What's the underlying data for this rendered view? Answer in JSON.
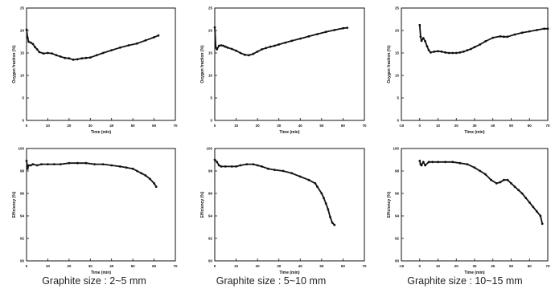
{
  "captions": [
    "Graphite size : 2~5 mm",
    "Graphite size : 5~10 mm",
    "Graphite size : 10~15 mm"
  ],
  "chart_data": [
    {
      "type": "line",
      "xlabel": "Time (min)",
      "ylabel": "Oxygen fraction (%)",
      "xlim": [
        0,
        70
      ],
      "ylim": [
        0,
        25
      ],
      "xticks": [
        0,
        10,
        20,
        30,
        40,
        50,
        60,
        70
      ],
      "yticks": [
        0,
        5,
        10,
        15,
        20,
        25
      ],
      "series": [
        {
          "x": [
            0,
            0.5,
            1,
            2,
            3,
            4,
            5,
            6,
            8,
            10,
            12,
            14,
            16,
            18,
            20,
            22,
            24,
            26,
            28,
            30,
            33,
            36,
            40,
            44,
            48,
            52,
            56,
            60,
            62
          ],
          "y": [
            20.2,
            18.4,
            17.5,
            17.3,
            17.0,
            16.3,
            15.8,
            15.2,
            14.9,
            15.0,
            14.9,
            14.5,
            14.2,
            13.9,
            13.8,
            13.5,
            13.6,
            13.8,
            13.9,
            14.0,
            14.5,
            15.0,
            15.6,
            16.2,
            16.7,
            17.1,
            17.8,
            18.5,
            18.9
          ]
        }
      ]
    },
    {
      "type": "line",
      "xlabel": "Time (min)",
      "ylabel": "Oxygen fraction (%)",
      "xlim": [
        0,
        70
      ],
      "ylim": [
        0,
        25
      ],
      "xticks": [
        0,
        10,
        20,
        30,
        40,
        50,
        60,
        70
      ],
      "yticks": [
        0,
        5,
        10,
        15,
        20,
        25
      ],
      "series": [
        {
          "x": [
            0,
            0.5,
            1,
            2,
            3,
            4,
            5,
            6,
            8,
            10,
            12,
            14,
            16,
            18,
            20,
            22,
            24,
            26,
            28,
            30,
            33,
            36,
            40,
            44,
            48,
            52,
            56,
            60,
            62
          ],
          "y": [
            20.7,
            16.2,
            15.8,
            16.6,
            16.7,
            16.6,
            16.4,
            16.2,
            15.9,
            15.5,
            15.0,
            14.6,
            14.5,
            14.8,
            15.3,
            15.8,
            16.1,
            16.4,
            16.6,
            16.9,
            17.3,
            17.7,
            18.2,
            18.7,
            19.2,
            19.7,
            20.1,
            20.5,
            20.6
          ]
        }
      ]
    },
    {
      "type": "line",
      "xlabel": "Time (min)",
      "ylabel": "Oxygen fraction (%)",
      "xlim": [
        -10,
        70
      ],
      "ylim": [
        0,
        25
      ],
      "xticks": [
        -10,
        0,
        10,
        20,
        30,
        40,
        50,
        60,
        70
      ],
      "yticks": [
        0,
        5,
        10,
        15,
        20,
        25
      ],
      "series": [
        {
          "x": [
            0,
            0.5,
            1,
            2,
            3,
            4,
            5,
            6,
            8,
            10,
            12,
            14,
            16,
            18,
            20,
            22,
            24,
            26,
            28,
            30,
            33,
            36,
            40,
            44,
            46,
            48,
            52,
            56,
            60,
            64,
            68,
            70
          ],
          "y": [
            21.2,
            18.6,
            17.7,
            18.3,
            17.6,
            16.5,
            15.6,
            15.1,
            15.3,
            15.4,
            15.3,
            15.1,
            15.0,
            15.0,
            15.0,
            15.1,
            15.3,
            15.6,
            15.9,
            16.3,
            16.9,
            17.6,
            18.4,
            18.7,
            18.6,
            18.6,
            19.1,
            19.5,
            19.8,
            20.1,
            20.4,
            20.4
          ]
        }
      ]
    },
    {
      "type": "line",
      "xlabel": "Time (min)",
      "ylabel": "Efficiency (%)",
      "xlim": [
        0,
        70
      ],
      "ylim": [
        90,
        100
      ],
      "xticks": [
        0,
        10,
        20,
        30,
        40,
        50,
        60,
        70
      ],
      "yticks": [
        90,
        92,
        94,
        96,
        98,
        100
      ],
      "series": [
        {
          "x": [
            0,
            0.5,
            1,
            2,
            3,
            5,
            7,
            10,
            13,
            16,
            20,
            24,
            28,
            32,
            36,
            40,
            44,
            47,
            50,
            52,
            54,
            56,
            58,
            60,
            61
          ],
          "y": [
            98.9,
            98.2,
            98.5,
            98.5,
            98.6,
            98.5,
            98.6,
            98.6,
            98.6,
            98.6,
            98.7,
            98.7,
            98.7,
            98.6,
            98.6,
            98.5,
            98.4,
            98.3,
            98.2,
            98.0,
            97.8,
            97.6,
            97.3,
            96.9,
            96.6
          ]
        }
      ]
    },
    {
      "type": "line",
      "xlabel": "Time (min)",
      "ylabel": "Efficiency (%)",
      "xlim": [
        0,
        70
      ],
      "ylim": [
        90,
        100
      ],
      "xticks": [
        0,
        10,
        20,
        30,
        40,
        50,
        60,
        70
      ],
      "yticks": [
        90,
        92,
        94,
        96,
        98,
        100
      ],
      "series": [
        {
          "x": [
            0,
            1,
            2,
            3,
            5,
            8,
            10,
            12,
            15,
            18,
            20,
            22,
            25,
            28,
            32,
            36,
            40,
            44,
            47,
            48,
            50,
            51,
            52,
            53,
            54,
            55,
            56
          ],
          "y": [
            99.0,
            98.8,
            98.5,
            98.4,
            98.4,
            98.4,
            98.4,
            98.5,
            98.6,
            98.6,
            98.5,
            98.4,
            98.2,
            98.1,
            98.0,
            97.8,
            97.5,
            97.2,
            96.9,
            96.6,
            96.0,
            95.6,
            95.1,
            94.6,
            93.9,
            93.4,
            93.2
          ]
        }
      ]
    },
    {
      "type": "line",
      "xlabel": "Time (min)",
      "ylabel": "Efficiency (%)",
      "xlim": [
        -10,
        70
      ],
      "ylim": [
        90,
        100
      ],
      "xticks": [
        -10,
        0,
        10,
        20,
        30,
        40,
        50,
        60,
        70
      ],
      "yticks": [
        90,
        92,
        94,
        96,
        98,
        100
      ],
      "series": [
        {
          "x": [
            0,
            0.5,
            1,
            2,
            3,
            5,
            7,
            10,
            14,
            18,
            22,
            26,
            30,
            33,
            36,
            39,
            42,
            44,
            46,
            48,
            50,
            52,
            54,
            56,
            58,
            60,
            62,
            64,
            66,
            67
          ],
          "y": [
            98.9,
            98.6,
            98.5,
            98.8,
            98.5,
            98.8,
            98.8,
            98.8,
            98.8,
            98.8,
            98.7,
            98.6,
            98.3,
            98.0,
            97.7,
            97.2,
            96.9,
            97.0,
            97.2,
            97.2,
            96.9,
            96.6,
            96.3,
            96.0,
            95.6,
            95.2,
            94.8,
            94.4,
            94.0,
            93.3
          ]
        }
      ]
    }
  ]
}
